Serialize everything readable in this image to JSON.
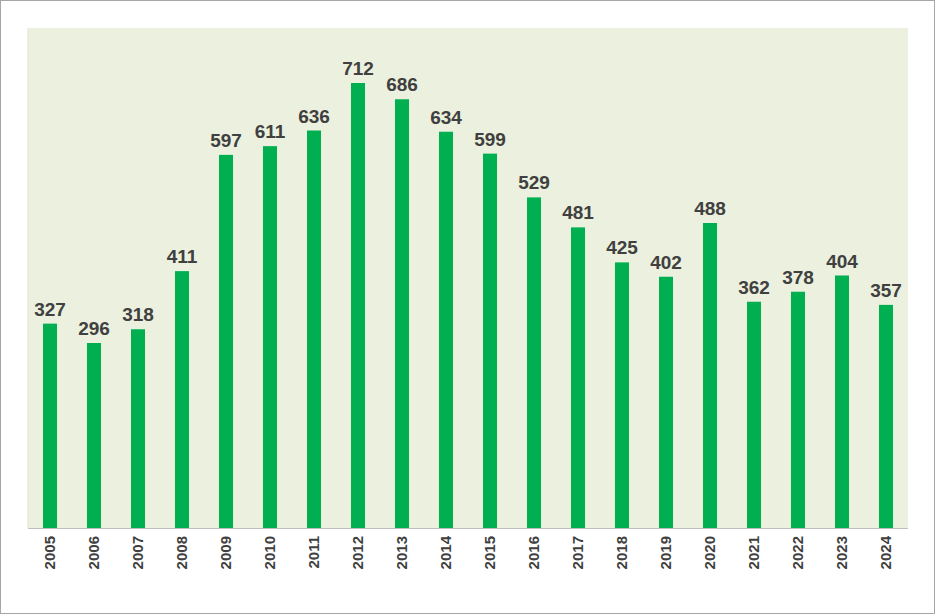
{
  "chart_data": {
    "type": "bar",
    "categories": [
      "2005",
      "2006",
      "2007",
      "2008",
      "2009",
      "2010",
      "2011",
      "2012",
      "2013",
      "2014",
      "2015",
      "2016",
      "2017",
      "2018",
      "2019",
      "2020",
      "2021",
      "2022",
      "2023",
      "2024"
    ],
    "values": [
      327,
      296,
      318,
      411,
      597,
      611,
      636,
      712,
      686,
      634,
      599,
      529,
      481,
      425,
      402,
      488,
      362,
      378,
      404,
      357
    ],
    "color": "#00b050",
    "ylim": [
      0,
      800
    ],
    "grid": false,
    "data_labels": true,
    "tick_labels": "x"
  }
}
